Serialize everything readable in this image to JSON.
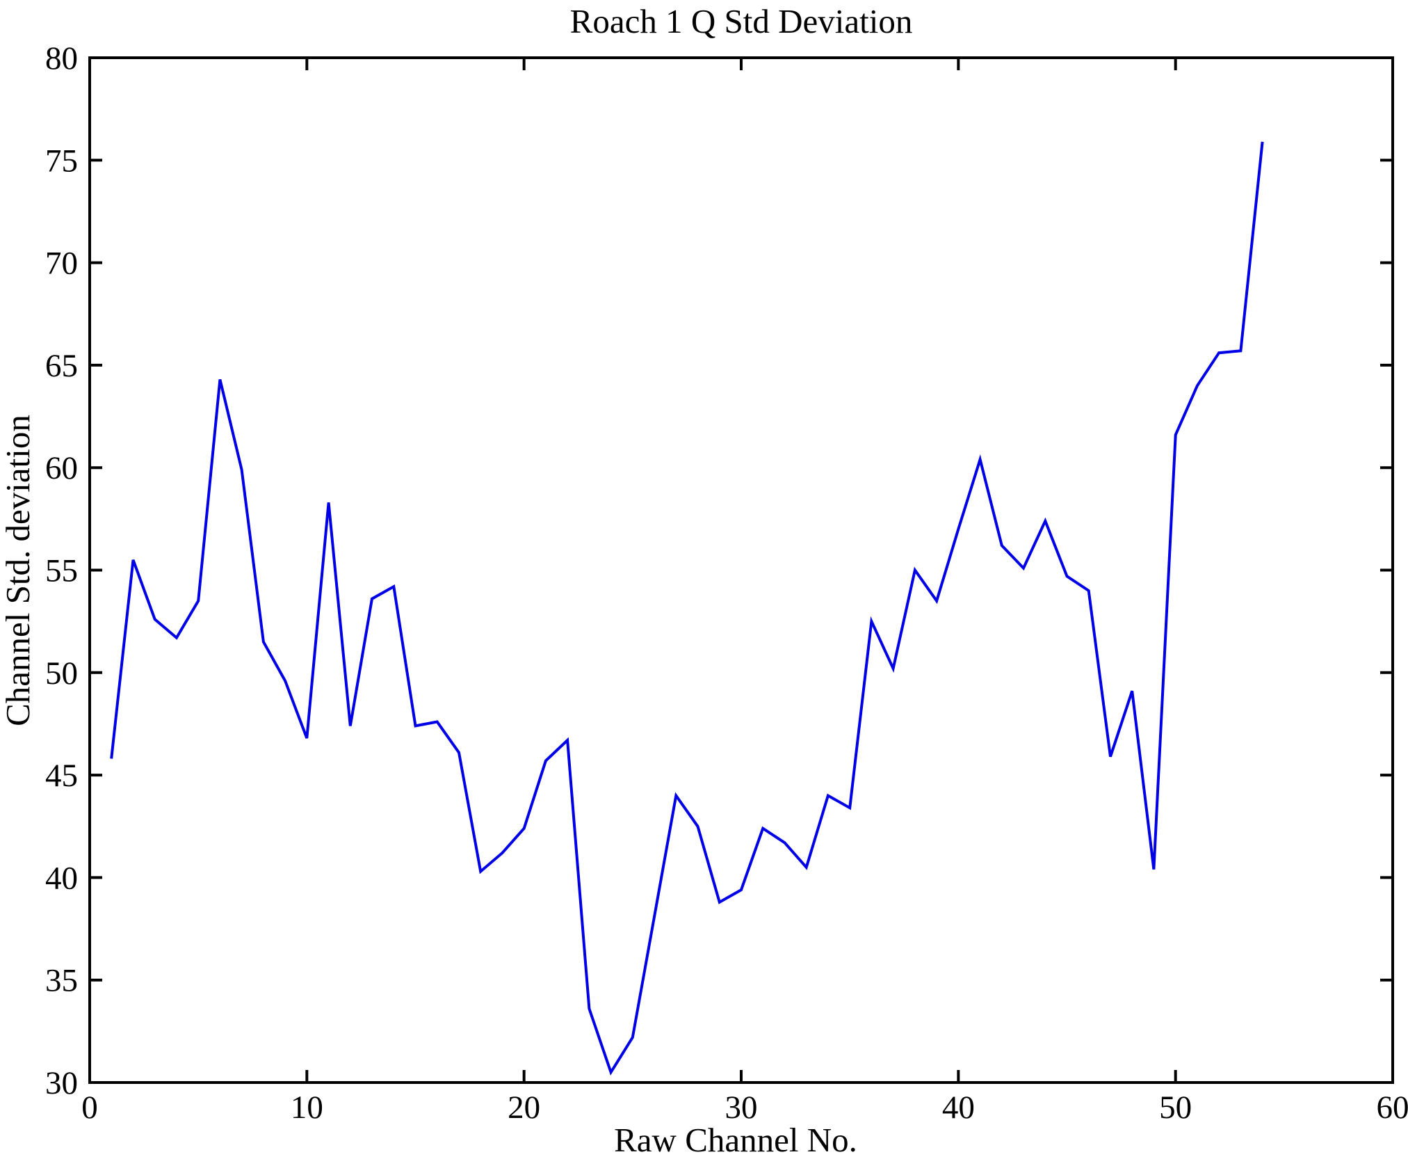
{
  "figure": {
    "background": "#ffffff",
    "frame_color": "#000000"
  },
  "chart_data": {
    "type": "line",
    "title": "Roach 1 Q Std Deviation",
    "xlabel": "Raw Channel No.",
    "ylabel": "Channel Std. deviation",
    "xlim": [
      0,
      60
    ],
    "ylim": [
      30,
      80
    ],
    "xticks": [
      0,
      10,
      20,
      30,
      40,
      50,
      60
    ],
    "yticks": [
      30,
      35,
      40,
      45,
      50,
      55,
      60,
      65,
      70,
      75,
      80
    ],
    "grid": false,
    "legend": null,
    "line_color": "#0000e6",
    "line_width": 4,
    "x": [
      1,
      2,
      3,
      4,
      5,
      6,
      7,
      8,
      9,
      10,
      11,
      12,
      13,
      14,
      15,
      16,
      17,
      18,
      19,
      20,
      21,
      22,
      23,
      24,
      25,
      26,
      27,
      28,
      29,
      30,
      31,
      32,
      33,
      34,
      35,
      36,
      37,
      38,
      39,
      40,
      41,
      42,
      43,
      44,
      45,
      46,
      47,
      48,
      49,
      50,
      51,
      52,
      53,
      54
    ],
    "values": [
      45.8,
      55.5,
      52.6,
      51.7,
      53.5,
      64.3,
      59.9,
      51.5,
      49.6,
      46.8,
      58.3,
      47.4,
      53.6,
      54.2,
      47.4,
      47.6,
      46.1,
      40.3,
      41.2,
      42.4,
      45.7,
      46.7,
      33.6,
      30.5,
      32.2,
      38.1,
      44.0,
      42.5,
      38.8,
      39.4,
      42.4,
      41.7,
      40.5,
      44.0,
      43.4,
      52.5,
      50.2,
      55.0,
      53.5,
      57.0,
      60.4,
      56.2,
      55.1,
      57.4,
      54.7,
      54.0,
      45.9,
      49.1,
      40.4,
      61.6,
      64.0,
      65.6,
      65.7,
      75.9
    ]
  }
}
